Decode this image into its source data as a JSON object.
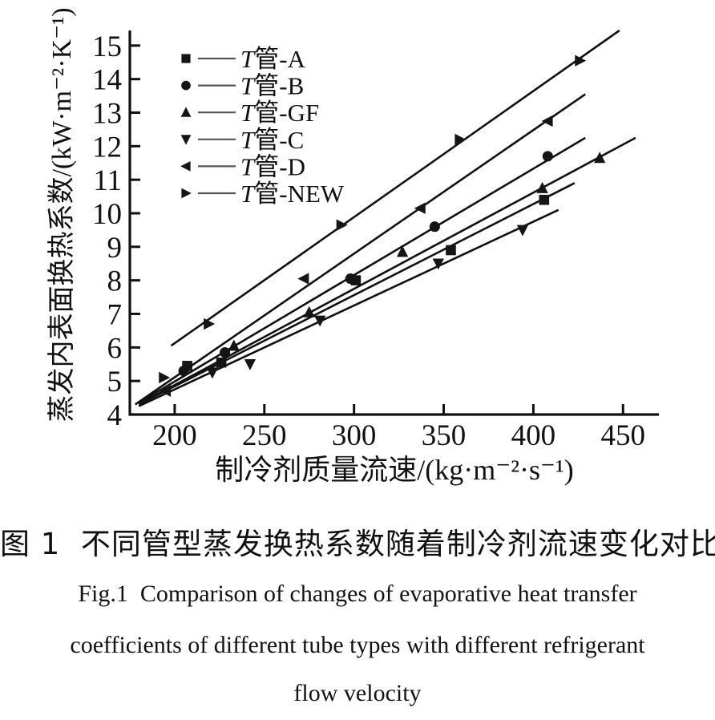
{
  "figure": {
    "caption_zh": "图 1  不同管型蒸发换热系数随着制冷剂流速变化对比",
    "caption_en": [
      "Fig.1  Comparison of changes of evaporative heat transfer",
      "coefficients of different tube types with different refrigerant",
      "flow velocity"
    ]
  },
  "chart_data": {
    "type": "scatter",
    "title": "",
    "xlabel": "制冷剂质量流速/(kg·m⁻²·s⁻¹)",
    "ylabel": "蒸发内表面换热系数/(kW·m⁻²·K⁻¹)",
    "xlim": [
      175,
      470
    ],
    "ylim": [
      4,
      15.45
    ],
    "xticks": [
      200,
      250,
      300,
      350,
      400,
      450
    ],
    "yticks": [
      4,
      5,
      6,
      7,
      8,
      9,
      10,
      11,
      12,
      13,
      14,
      15
    ],
    "grid": false,
    "legend_position": "top-left",
    "axis_color": "#111111",
    "marker_color": "#151515",
    "series": [
      {
        "name": "T管-A",
        "marker": "square",
        "points": [
          [
            207,
            5.45
          ],
          [
            226,
            5.55
          ],
          [
            301,
            8.0
          ],
          [
            354,
            8.9
          ],
          [
            406,
            10.4
          ]
        ],
        "fit_line": [
          [
            180,
            4.3
          ],
          [
            423,
            10.9
          ]
        ]
      },
      {
        "name": "T管-B",
        "marker": "circle",
        "points": [
          [
            205,
            5.3
          ],
          [
            228,
            5.85
          ],
          [
            298,
            8.05
          ],
          [
            345,
            9.6
          ],
          [
            408,
            11.7
          ]
        ],
        "fit_line": [
          [
            180,
            4.35
          ],
          [
            429,
            12.25
          ]
        ]
      },
      {
        "name": "T管-GF",
        "marker": "triangle-up",
        "points": [
          [
            233,
            6.05
          ],
          [
            275,
            7.05
          ],
          [
            327,
            8.85
          ],
          [
            405,
            10.75
          ],
          [
            437,
            11.65
          ]
        ],
        "fit_line": [
          [
            185,
            4.45
          ],
          [
            457,
            12.25
          ]
        ]
      },
      {
        "name": "T管-C",
        "marker": "triangle-down",
        "points": [
          [
            221,
            5.25
          ],
          [
            242,
            5.5
          ],
          [
            281,
            6.8
          ],
          [
            347,
            8.5
          ],
          [
            394,
            9.5
          ]
        ],
        "fit_line": [
          [
            180,
            4.25
          ],
          [
            414,
            10.1
          ]
        ]
      },
      {
        "name": "T管-D",
        "marker": "triangle-left",
        "points": [
          [
            195,
            4.7
          ],
          [
            272,
            8.05
          ],
          [
            337,
            10.15
          ],
          [
            408,
            12.75
          ]
        ],
        "fit_line": [
          [
            178,
            4.3
          ],
          [
            429,
            13.55
          ]
        ]
      },
      {
        "name": "T管-NEW",
        "marker": "triangle-right",
        "points": [
          [
            194,
            5.1
          ],
          [
            219,
            6.7
          ],
          [
            293,
            9.65
          ],
          [
            359,
            12.2
          ],
          [
            426,
            14.55
          ]
        ],
        "fit_line": [
          [
            198,
            6.05
          ],
          [
            448,
            15.45
          ]
        ]
      }
    ]
  }
}
